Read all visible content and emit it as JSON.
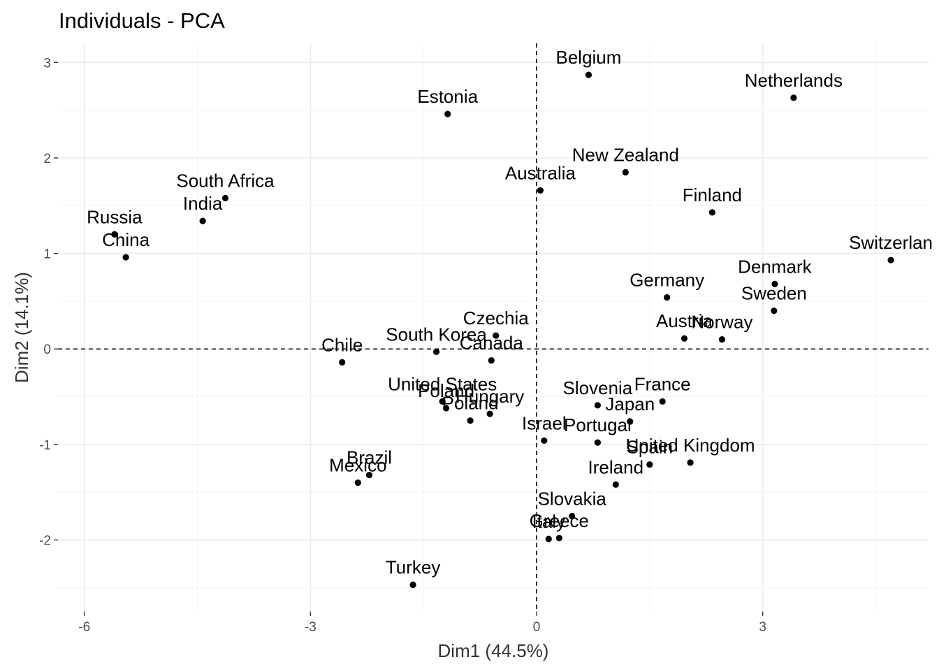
{
  "chart_data": {
    "type": "scatter",
    "title": "Individuals - PCA",
    "xlabel": "Dim1 (44.5%)",
    "ylabel": "Dim2 (14.1%)",
    "xlim": [
      -6.35,
      5.2
    ],
    "ylim": [
      -2.75,
      3.2
    ],
    "xticks": [
      -6,
      -3,
      0,
      3
    ],
    "yticks": [
      -2,
      -1,
      0,
      1,
      2,
      3
    ],
    "xtick_labels": [
      "-6",
      "-3",
      "0",
      "3"
    ],
    "ytick_labels": [
      "-2",
      "-1",
      "0",
      "1",
      "2",
      "3"
    ],
    "grid": true,
    "reference_lines": {
      "x": 0,
      "y": 0,
      "style": "dashed"
    },
    "point_color": "#000000",
    "points": [
      {
        "label": "Belgium",
        "x": 0.69,
        "y": 2.87
      },
      {
        "label": "Netherlands",
        "x": 3.41,
        "y": 2.63
      },
      {
        "label": "Estonia",
        "x": -1.18,
        "y": 2.46
      },
      {
        "label": "New Zealand",
        "x": 1.18,
        "y": 1.85
      },
      {
        "label": "Australia",
        "x": 0.05,
        "y": 1.66
      },
      {
        "label": "South Africa",
        "x": -4.13,
        "y": 1.58
      },
      {
        "label": "Finland",
        "x": 2.33,
        "y": 1.43
      },
      {
        "label": "India",
        "x": -4.43,
        "y": 1.34
      },
      {
        "label": "Russia",
        "x": -5.6,
        "y": 1.2
      },
      {
        "label": "China",
        "x": -5.45,
        "y": 0.96
      },
      {
        "label": "Switzerlan",
        "x": 4.7,
        "y": 0.93
      },
      {
        "label": "Denmark",
        "x": 3.16,
        "y": 0.68
      },
      {
        "label": "Germany",
        "x": 1.73,
        "y": 0.54
      },
      {
        "label": "Sweden",
        "x": 3.15,
        "y": 0.4
      },
      {
        "label": "Czechia",
        "x": -0.54,
        "y": 0.14
      },
      {
        "label": "Austria",
        "x": 1.96,
        "y": 0.11
      },
      {
        "label": "Norway",
        "x": 2.46,
        "y": 0.1
      },
      {
        "label": "South Korea",
        "x": -1.33,
        "y": -0.03
      },
      {
        "label": "Canada",
        "x": -0.6,
        "y": -0.12
      },
      {
        "label": "Chile",
        "x": -2.58,
        "y": -0.14
      },
      {
        "label": "France",
        "x": 1.67,
        "y": -0.55
      },
      {
        "label": "Slovenia",
        "x": 0.81,
        "y": -0.59
      },
      {
        "label": "United States",
        "x": -1.25,
        "y": -0.55
      },
      {
        "label": "Poland",
        "x": -1.2,
        "y": -0.62
      },
      {
        "label": "Hungary",
        "x": -0.62,
        "y": -0.68
      },
      {
        "label": "Japan",
        "x": 1.24,
        "y": -0.76
      },
      {
        "label": "Poland",
        "x": -0.88,
        "y": -0.75
      },
      {
        "label": "Israel",
        "x": 0.1,
        "y": -0.96
      },
      {
        "label": "Portugal",
        "x": 0.81,
        "y": -0.98
      },
      {
        "label": "United Kingdom",
        "x": 2.04,
        "y": -1.19
      },
      {
        "label": "Spain",
        "x": 1.5,
        "y": -1.21
      },
      {
        "label": "Ireland",
        "x": 1.05,
        "y": -1.42
      },
      {
        "label": "Brazil",
        "x": -2.22,
        "y": -1.32
      },
      {
        "label": "Mexico",
        "x": -2.37,
        "y": -1.4
      },
      {
        "label": "Slovakia",
        "x": 0.47,
        "y": -1.75
      },
      {
        "label": "Greece",
        "x": 0.3,
        "y": -1.98
      },
      {
        "label": "Italy",
        "x": 0.16,
        "y": -1.99
      },
      {
        "label": "Turkey",
        "x": -1.64,
        "y": -2.47
      }
    ]
  }
}
